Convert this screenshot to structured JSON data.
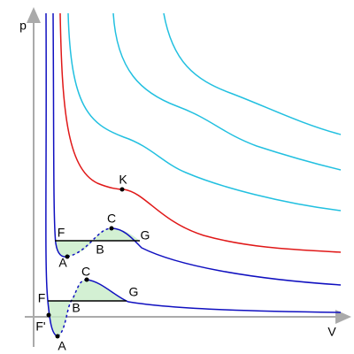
{
  "axes": {
    "y_label": "p",
    "x_label": "V"
  },
  "points": [
    "K",
    "C",
    "F",
    "G",
    "A",
    "B",
    "F",
    "B",
    "C",
    "G",
    "F'",
    "A"
  ]
}
